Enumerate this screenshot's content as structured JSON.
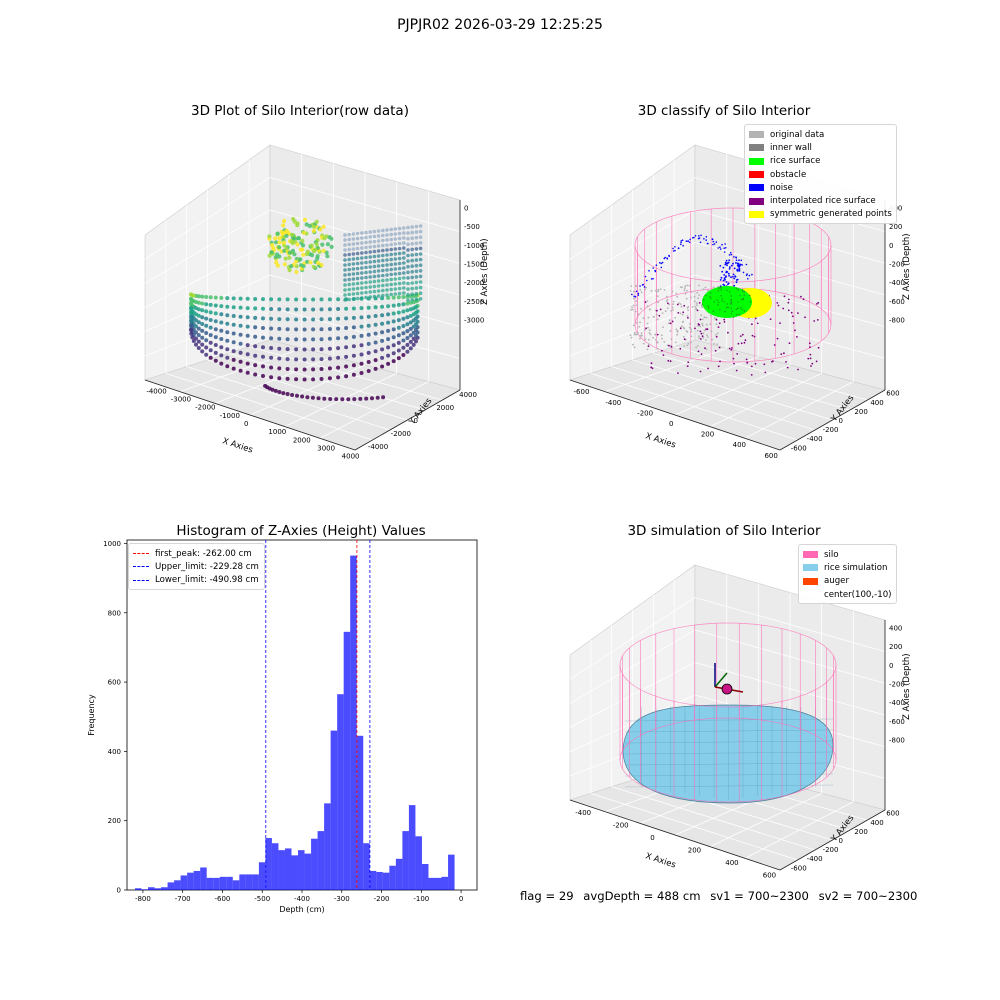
{
  "figure": {
    "suptitle": "PJPJR02 2026-03-29 12:25:25",
    "footer": {
      "flag": "flag = 29",
      "avg_depth": "avgDepth = 488 cm",
      "sv1": "sv1 = 700~2300",
      "sv2": "sv2 = 700~2300"
    }
  },
  "panels": {
    "raw": {
      "title": "3D Plot of Silo Interior(row data)",
      "xlabel": "X Axies",
      "ylabel": "Y Axies",
      "zlabel": "Z Axies (Depth)",
      "xticks": [
        "-4000",
        "-3000",
        "-2000",
        "-1000",
        "0",
        "1000",
        "2000",
        "3000",
        "4000"
      ],
      "yticks": [
        "-4000",
        "-2000",
        "0",
        "2000",
        "4000"
      ],
      "zticks": [
        "0",
        "-500",
        "-1000",
        "-1500",
        "-2000",
        "-2500",
        "-3000"
      ],
      "colormap": "viridis"
    },
    "classify": {
      "title": "3D classify of Silo Interior",
      "xlabel": "X Axies",
      "ylabel": "Y Axies",
      "zlabel": "Z Axies (Depth)",
      "xticks": [
        "-600",
        "-400",
        "-200",
        "0",
        "200",
        "400",
        "600"
      ],
      "yticks": [
        "-600",
        "-400",
        "-200",
        "0",
        "200",
        "400",
        "600"
      ],
      "zticks": [
        "400",
        "200",
        "0",
        "-200",
        "-400",
        "-600",
        "-800"
      ],
      "legend": [
        {
          "label": "original data",
          "color": "#b3b3b3"
        },
        {
          "label": "inner wall",
          "color": "#808080"
        },
        {
          "label": "rice surface",
          "color": "#00ff00"
        },
        {
          "label": "obstacle",
          "color": "#ff0000"
        },
        {
          "label": "noise",
          "color": "#0000ff"
        },
        {
          "label": "interpolated rice surface",
          "color": "#800080"
        },
        {
          "label": "symmetric generated points",
          "color": "#ffff00"
        }
      ]
    },
    "simulation": {
      "title": "3D simulation of Silo Interior",
      "xlabel": "X Axies",
      "ylabel": "Y Axies",
      "zlabel": "Z Axies (Depth)",
      "xticks": [
        "-400",
        "-200",
        "0",
        "200",
        "400",
        "600"
      ],
      "yticks": [
        "-600",
        "-400",
        "-200",
        "0",
        "200",
        "400",
        "600"
      ],
      "zticks": [
        "400",
        "200",
        "0",
        "-200",
        "-400",
        "-600",
        "-800"
      ],
      "legend": [
        {
          "label": "silo",
          "color": "#ff69b4"
        },
        {
          "label": "rice simulation",
          "color": "#87ceeb"
        },
        {
          "label": "auger",
          "color": "#ff4500"
        },
        {
          "label": "center(100,-10)",
          "color": ""
        }
      ]
    }
  },
  "chart_data": {
    "type": "bar",
    "title": "Histogram of Z-Axies (Height) Values",
    "xlabel": "Depth (cm)",
    "ylabel": "Frequency",
    "xlim": [
      -840,
      40
    ],
    "ylim": [
      0,
      1010
    ],
    "xticks": [
      -800,
      -700,
      -600,
      -500,
      -400,
      -300,
      -200,
      -100,
      0
    ],
    "yticks": [
      0,
      200,
      400,
      600,
      800,
      1000
    ],
    "bar_color": "#0000ff",
    "bins_start": -820,
    "bin_width": 16.4,
    "values": [
      5,
      2,
      8,
      5,
      8,
      22,
      28,
      42,
      50,
      55,
      65,
      35,
      35,
      38,
      38,
      28,
      45,
      45,
      45,
      80,
      150,
      135,
      115,
      120,
      100,
      115,
      105,
      148,
      170,
      250,
      460,
      565,
      745,
      965,
      445,
      135,
      55,
      52,
      50,
      70,
      90,
      170,
      245,
      155,
      75,
      35,
      35,
      38,
      102
    ],
    "reference_lines": [
      {
        "label": "first_peak: -262.00 cm",
        "value": -262.0,
        "color": "#ff0000"
      },
      {
        "label": "Upper_limit: -229.28 cm",
        "value": -229.28,
        "color": "#0000ff"
      },
      {
        "label": "Lower_limit: -490.98 cm",
        "value": -490.98,
        "color": "#0000ff"
      }
    ]
  }
}
